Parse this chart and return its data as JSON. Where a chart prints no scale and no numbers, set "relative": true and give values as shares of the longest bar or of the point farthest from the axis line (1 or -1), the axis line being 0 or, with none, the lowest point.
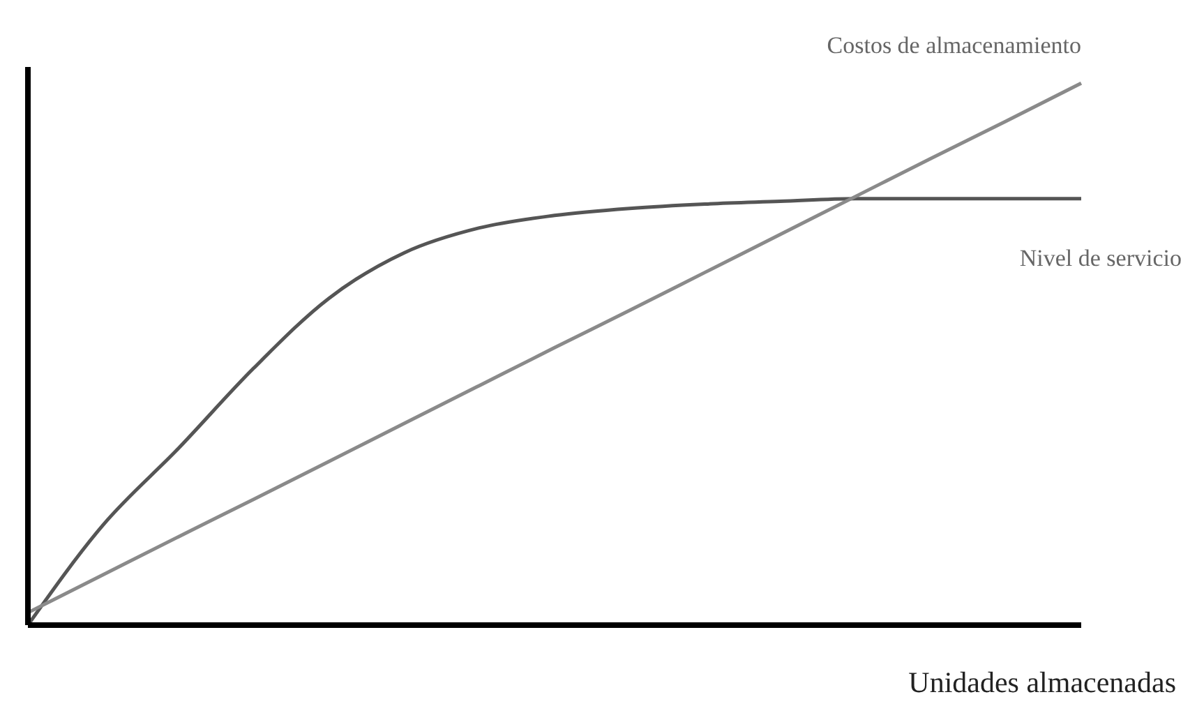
{
  "chart_data": {
    "type": "line",
    "relative": true,
    "xlabel": "Unidades almacenadas",
    "legend": false,
    "grid": false,
    "marker": "none",
    "categories": [
      null,
      null,
      null,
      null,
      null,
      null,
      null,
      null,
      null,
      null,
      null,
      null,
      null,
      null,
      null
    ],
    "series": [
      {
        "name": "Nivel de servicio",
        "color": "#555555",
        "values": [
          0,
          0.185,
          0.326,
          0.474,
          0.603,
          0.687,
          0.733,
          0.756,
          0.769,
          0.777,
          0.782,
          0.787,
          0.787,
          0.787,
          0.787
        ]
      },
      {
        "name": "Costos de almacenamiento",
        "color": "#8a8a8a",
        "values": [
          0.023,
          0.093,
          0.163,
          0.232,
          0.302,
          0.372,
          0.442,
          0.512,
          0.581,
          0.651,
          0.721,
          0.791,
          0.861,
          0.93,
          1.0
        ]
      }
    ]
  }
}
